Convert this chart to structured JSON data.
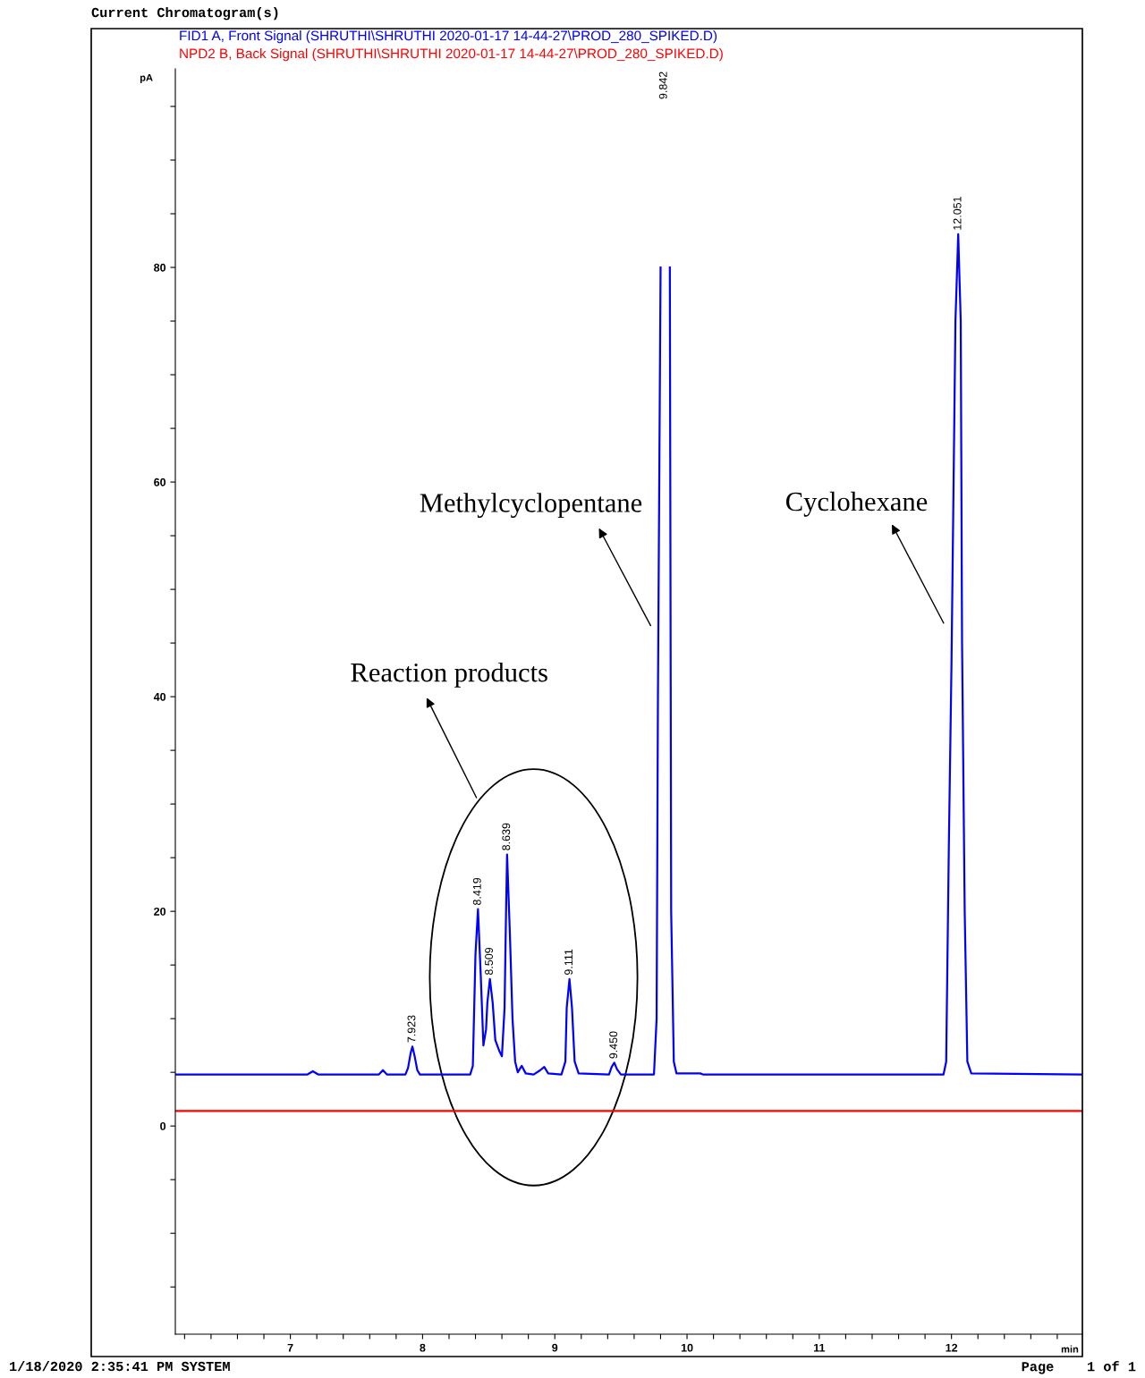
{
  "chart_data": {
    "type": "line",
    "title": "Current Chromatogram(s)",
    "xlabel": "min",
    "ylabel": "pA",
    "xlim": [
      6.13,
      12.99
    ],
    "ylim": [
      -19.4,
      98.5
    ],
    "xticks": [
      {
        "value": 6.2,
        "label": null
      },
      {
        "value": 6.4,
        "label": null
      },
      {
        "value": 6.6,
        "label": null
      },
      {
        "value": 6.8,
        "label": null
      },
      7,
      {
        "value": 7.2,
        "label": null
      },
      {
        "value": 7.4,
        "label": null
      },
      {
        "value": 7.6,
        "label": null
      },
      {
        "value": 7.8,
        "label": null
      },
      8,
      {
        "value": 8.2,
        "label": null
      },
      {
        "value": 8.4,
        "label": null
      },
      {
        "value": 8.6,
        "label": null
      },
      {
        "value": 8.8,
        "label": null
      },
      9,
      {
        "value": 9.2,
        "label": null
      },
      {
        "value": 9.4,
        "label": null
      },
      {
        "value": 9.6,
        "label": null
      },
      {
        "value": 9.8,
        "label": null
      },
      10,
      {
        "value": 10.2,
        "label": null
      },
      {
        "value": 10.4,
        "label": null
      },
      {
        "value": 10.6,
        "label": null
      },
      {
        "value": 10.8,
        "label": null
      },
      11,
      {
        "value": 11.2,
        "label": null
      },
      {
        "value": 11.4,
        "label": null
      },
      {
        "value": 11.6,
        "label": null
      },
      {
        "value": 11.8,
        "label": null
      },
      12,
      {
        "value": 12.2,
        "label": null
      },
      {
        "value": 12.4,
        "label": null
      },
      {
        "value": 12.6,
        "label": null
      },
      {
        "value": 12.8,
        "label": null
      }
    ],
    "yticks": [
      {
        "value": -15,
        "label": null
      },
      {
        "value": -10,
        "label": null
      },
      {
        "value": -5,
        "label": null
      },
      0,
      {
        "value": 5,
        "label": null
      },
      {
        "value": 10,
        "label": null
      },
      {
        "value": 15,
        "label": null
      },
      20,
      {
        "value": 25,
        "label": null
      },
      {
        "value": 30,
        "label": null
      },
      {
        "value": 35,
        "label": null
      },
      40,
      {
        "value": 45,
        "label": null
      },
      {
        "value": 50,
        "label": null
      },
      {
        "value": 55,
        "label": null
      },
      60,
      {
        "value": 65,
        "label": null
      },
      {
        "value": 70,
        "label": null
      },
      {
        "value": 75,
        "label": null
      },
      80,
      {
        "value": 85,
        "label": null
      },
      {
        "value": 90,
        "label": null
      },
      {
        "value": 95,
        "label": null
      }
    ],
    "legend": "top left",
    "series": [
      {
        "name": "FID1 A, Front Signal (SHRUTHI\\SHRUTHI 2020-01-17 14-44-27\\PROD_280_SPIKED.D)",
        "color": "#0000ff",
        "x": [
          6.13,
          7.13,
          7.17,
          7.21,
          7.67,
          7.7,
          7.73,
          7.87,
          7.89,
          7.91,
          7.923,
          7.94,
          7.96,
          7.98,
          8.36,
          8.38,
          8.4,
          8.419,
          8.44,
          8.46,
          8.48,
          8.49,
          8.509,
          8.53,
          8.55,
          8.58,
          8.6,
          8.62,
          8.63,
          8.639,
          8.66,
          8.68,
          8.7,
          8.72,
          8.75,
          8.78,
          8.84,
          8.89,
          8.92,
          8.95,
          9.05,
          9.08,
          9.09,
          9.111,
          9.13,
          9.15,
          9.18,
          9.41,
          9.43,
          9.45,
          9.47,
          9.5,
          9.75,
          9.77,
          9.78,
          9.8,
          9.81,
          9.842,
          9.87,
          9.88,
          9.9,
          9.92,
          10.1,
          10.12,
          11.94,
          11.96,
          11.98,
          12.0,
          12.03,
          12.051,
          12.07,
          12.08,
          12.1,
          12.12,
          12.15,
          12.99
        ],
        "values": [
          4.8,
          4.8,
          5.1,
          4.8,
          4.8,
          5.2,
          4.8,
          4.8,
          5.4,
          6.8,
          7.4,
          6.5,
          5.2,
          4.8,
          4.8,
          5.6,
          16.0,
          20.2,
          14.0,
          7.5,
          9.0,
          11.5,
          13.7,
          11.5,
          8.0,
          7.0,
          6.5,
          11.0,
          19.0,
          25.3,
          18.0,
          10.0,
          6.0,
          5.0,
          5.6,
          4.9,
          4.8,
          5.2,
          5.5,
          4.9,
          4.8,
          6.0,
          11.0,
          13.7,
          11.0,
          6.0,
          4.9,
          4.8,
          5.5,
          5.9,
          5.3,
          4.8,
          4.8,
          10,
          40,
          80,
          null,
          null,
          80,
          20,
          6,
          4.9,
          4.9,
          4.8,
          4.8,
          6,
          26,
          43,
          75,
          83.1,
          75,
          45,
          20,
          6,
          4.9,
          4.8
        ]
      },
      {
        "name": "NPD2 B, Back Signal (SHRUTHI\\SHRUTHI 2020-01-17 14-44-27\\PROD_280_SPIKED.D)",
        "color": "#ff0000",
        "x": [
          6.13,
          12.99
        ],
        "values": [
          1.4,
          1.4
        ]
      }
    ],
    "annotations": [
      {
        "text": "7.923",
        "x": 7.923,
        "y": 7.4
      },
      {
        "text": "8.419",
        "x": 8.419,
        "y": 20.2
      },
      {
        "text": "8.509",
        "x": 8.509,
        "y": 13.7
      },
      {
        "text": "8.639",
        "x": 8.639,
        "y": 25.3
      },
      {
        "text": "9.111",
        "x": 9.111,
        "y": 13.7
      },
      {
        "text": "9.450",
        "x": 9.45,
        "y": 5.9
      },
      "9.842",
      {
        "text": "12.051",
        "x": 12.051,
        "y": 83.1
      },
      "Reaction products",
      "Methylcyclopentane",
      "Cyclohexane",
      "1/18/2020 2:35:41 PM SYSTEM",
      "Page    1 of 1"
    ]
  }
}
